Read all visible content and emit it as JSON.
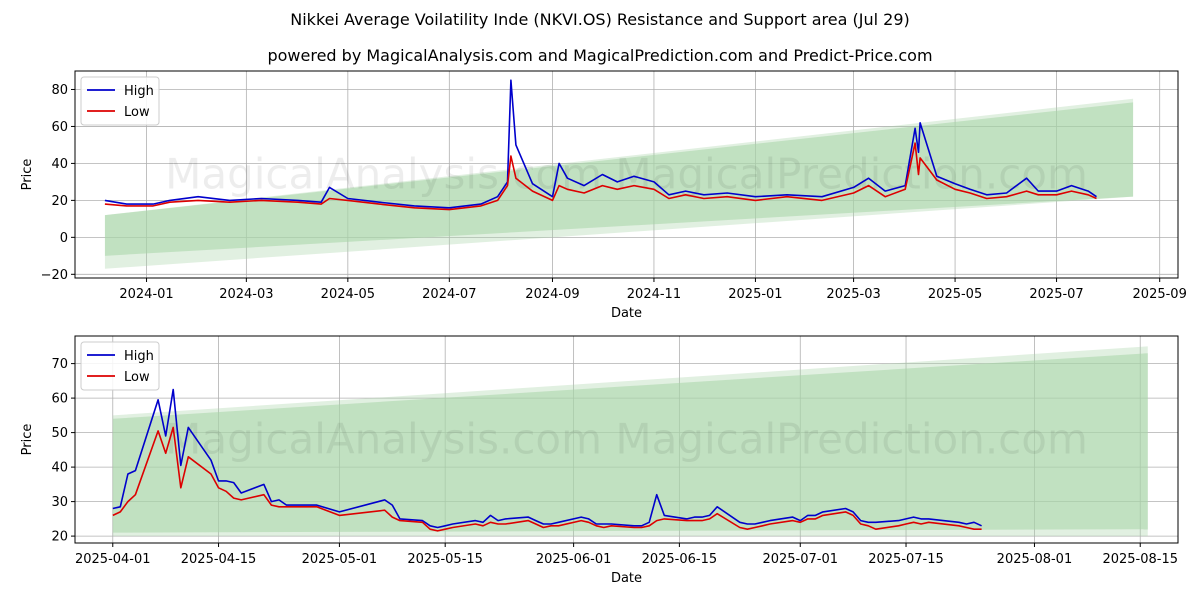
{
  "title": "Nikkei Average Voilatility Inde (NKVI.OS) Resistance and Support area (Jul 29)",
  "subtitle": "powered by MagicalAnalysis.com and MagicalPrediction.com and Predict-Price.com",
  "watermark": "MagicalAnalysis.com    MagicalPrediction.com",
  "colors": {
    "high": "#0000cc",
    "low": "#dd0000",
    "band": "#a8d5a8",
    "grid": "#b0b0b0"
  },
  "chart_data": [
    {
      "type": "line",
      "xlabel": "Date",
      "ylabel": "Price",
      "ylim": [
        -22,
        90
      ],
      "xlim": [
        "2023-11-19",
        "2025-09-12"
      ],
      "yticks": [
        -20,
        0,
        20,
        40,
        60,
        80
      ],
      "xticks": [
        "2024-01",
        "2024-03",
        "2024-05",
        "2024-07",
        "2024-09",
        "2024-11",
        "2025-01",
        "2025-03",
        "2025-05",
        "2025-07",
        "2025-09"
      ],
      "legend": "top-left",
      "grid": true,
      "band": {
        "x_start": "2023-12-07",
        "x_end": "2025-08-16",
        "outer": {
          "start": [
            -17,
            12
          ],
          "end": [
            22,
            75
          ]
        },
        "inner": {
          "start": [
            -10,
            12
          ],
          "end": [
            22,
            73
          ]
        }
      },
      "series": [
        {
          "name": "High",
          "color": "#0000cc",
          "x": [
            "2023-12-07",
            "2023-12-20",
            "2024-01-05",
            "2024-01-15",
            "2024-02-01",
            "2024-02-20",
            "2024-03-10",
            "2024-04-01",
            "2024-04-15",
            "2024-04-20",
            "2024-05-01",
            "2024-05-20",
            "2024-06-10",
            "2024-07-01",
            "2024-07-20",
            "2024-07-30",
            "2024-08-05",
            "2024-08-07",
            "2024-08-10",
            "2024-08-20",
            "2024-09-01",
            "2024-09-05",
            "2024-09-10",
            "2024-09-20",
            "2024-10-01",
            "2024-10-10",
            "2024-10-20",
            "2024-11-01",
            "2024-11-10",
            "2024-11-20",
            "2024-12-01",
            "2024-12-15",
            "2025-01-01",
            "2025-01-20",
            "2025-02-10",
            "2025-03-01",
            "2025-03-10",
            "2025-03-20",
            "2025-04-01",
            "2025-04-07",
            "2025-04-09",
            "2025-04-10",
            "2025-04-20",
            "2025-05-01",
            "2025-05-10",
            "2025-05-20",
            "2025-06-01",
            "2025-06-13",
            "2025-06-20",
            "2025-07-01",
            "2025-07-10",
            "2025-07-20",
            "2025-07-25"
          ],
          "values": [
            20,
            18,
            18,
            20,
            22,
            20,
            21,
            20,
            19,
            27,
            21,
            19,
            17,
            16,
            18,
            22,
            30,
            85,
            50,
            29,
            22,
            40,
            32,
            28,
            34,
            30,
            33,
            30,
            23,
            25,
            23,
            24,
            22,
            23,
            22,
            27,
            32,
            25,
            28,
            59,
            46,
            62,
            33,
            29,
            26,
            23,
            24,
            32,
            25,
            25,
            28,
            25,
            22
          ]
        },
        {
          "name": "Low",
          "color": "#dd0000",
          "x": [
            "2023-12-07",
            "2023-12-20",
            "2024-01-05",
            "2024-01-15",
            "2024-02-01",
            "2024-02-20",
            "2024-03-10",
            "2024-04-01",
            "2024-04-15",
            "2024-04-20",
            "2024-05-01",
            "2024-05-20",
            "2024-06-10",
            "2024-07-01",
            "2024-07-20",
            "2024-07-30",
            "2024-08-05",
            "2024-08-07",
            "2024-08-10",
            "2024-08-20",
            "2024-09-01",
            "2024-09-05",
            "2024-09-10",
            "2024-09-20",
            "2024-10-01",
            "2024-10-10",
            "2024-10-20",
            "2024-11-01",
            "2024-11-10",
            "2024-11-20",
            "2024-12-01",
            "2024-12-15",
            "2025-01-01",
            "2025-01-20",
            "2025-02-10",
            "2025-03-01",
            "2025-03-10",
            "2025-03-20",
            "2025-04-01",
            "2025-04-07",
            "2025-04-09",
            "2025-04-10",
            "2025-04-20",
            "2025-05-01",
            "2025-05-10",
            "2025-05-20",
            "2025-06-01",
            "2025-06-13",
            "2025-06-20",
            "2025-07-01",
            "2025-07-10",
            "2025-07-20",
            "2025-07-25"
          ],
          "values": [
            18,
            17,
            17,
            19,
            20,
            19,
            20,
            19,
            18,
            21,
            20,
            18,
            16,
            15,
            17,
            20,
            28,
            44,
            32,
            25,
            20,
            28,
            26,
            24,
            28,
            26,
            28,
            26,
            21,
            23,
            21,
            22,
            20,
            22,
            20,
            24,
            28,
            22,
            26,
            51,
            34,
            43,
            31,
            26,
            24,
            21,
            22,
            25,
            23,
            23,
            25,
            23,
            21
          ]
        }
      ]
    },
    {
      "type": "line",
      "xlabel": "Date",
      "ylabel": "Price",
      "ylim": [
        18,
        78
      ],
      "xlim": [
        "2025-03-27",
        "2025-08-20"
      ],
      "yticks": [
        20,
        30,
        40,
        50,
        60,
        70
      ],
      "xticks": [
        "2025-04-01",
        "2025-04-15",
        "2025-05-01",
        "2025-05-15",
        "2025-06-01",
        "2025-06-15",
        "2025-07-01",
        "2025-07-15",
        "2025-08-01",
        "2025-08-15"
      ],
      "legend": "top-left",
      "grid": true,
      "band": {
        "x_start": "2025-04-01",
        "x_end": "2025-08-16",
        "outer": {
          "start": [
            20,
            55
          ],
          "end": [
            20,
            75
          ]
        },
        "inner": {
          "start": [
            21,
            54
          ],
          "end": [
            22,
            73
          ]
        }
      },
      "series": [
        {
          "name": "High",
          "color": "#0000cc",
          "x": [
            "2025-04-01",
            "2025-04-02",
            "2025-04-03",
            "2025-04-04",
            "2025-04-07",
            "2025-04-08",
            "2025-04-09",
            "2025-04-10",
            "2025-04-11",
            "2025-04-14",
            "2025-04-15",
            "2025-04-16",
            "2025-04-17",
            "2025-04-18",
            "2025-04-21",
            "2025-04-22",
            "2025-04-23",
            "2025-04-24",
            "2025-04-25",
            "2025-04-28",
            "2025-05-01",
            "2025-05-07",
            "2025-05-08",
            "2025-05-09",
            "2025-05-12",
            "2025-05-13",
            "2025-05-14",
            "2025-05-15",
            "2025-05-16",
            "2025-05-19",
            "2025-05-20",
            "2025-05-21",
            "2025-05-22",
            "2025-05-23",
            "2025-05-26",
            "2025-05-27",
            "2025-05-28",
            "2025-05-29",
            "2025-05-30",
            "2025-06-02",
            "2025-06-03",
            "2025-06-04",
            "2025-06-05",
            "2025-06-06",
            "2025-06-09",
            "2025-06-10",
            "2025-06-11",
            "2025-06-12",
            "2025-06-13",
            "2025-06-16",
            "2025-06-17",
            "2025-06-18",
            "2025-06-19",
            "2025-06-20",
            "2025-06-23",
            "2025-06-24",
            "2025-06-25",
            "2025-06-26",
            "2025-06-27",
            "2025-06-30",
            "2025-07-01",
            "2025-07-02",
            "2025-07-03",
            "2025-07-04",
            "2025-07-07",
            "2025-07-08",
            "2025-07-09",
            "2025-07-10",
            "2025-07-11",
            "2025-07-14",
            "2025-07-15",
            "2025-07-16",
            "2025-07-17",
            "2025-07-18",
            "2025-07-22",
            "2025-07-23",
            "2025-07-24",
            "2025-07-25"
          ],
          "values": [
            28,
            28.5,
            38,
            39,
            59.5,
            49,
            62.5,
            40.5,
            51.5,
            42,
            36,
            36,
            35.5,
            32.5,
            35,
            30,
            30.5,
            29,
            29,
            29,
            27,
            30.5,
            29,
            25,
            24.5,
            23,
            22.5,
            23,
            23.5,
            24.5,
            24,
            26,
            24.5,
            25,
            25.5,
            24.5,
            23.5,
            23.5,
            24,
            25.5,
            25,
            23.5,
            23.5,
            23.5,
            23,
            23,
            24,
            32,
            26,
            25,
            25.5,
            25.5,
            26,
            28.5,
            24,
            23.5,
            23.5,
            24,
            24.5,
            25.5,
            24.5,
            26,
            26,
            27,
            28,
            27,
            24.5,
            24,
            24,
            24.5,
            25,
            25.5,
            25,
            25,
            24,
            23.5,
            24,
            23
          ]
        },
        {
          "name": "Low",
          "color": "#dd0000",
          "x": [
            "2025-04-01",
            "2025-04-02",
            "2025-04-03",
            "2025-04-04",
            "2025-04-07",
            "2025-04-08",
            "2025-04-09",
            "2025-04-10",
            "2025-04-11",
            "2025-04-14",
            "2025-04-15",
            "2025-04-16",
            "2025-04-17",
            "2025-04-18",
            "2025-04-21",
            "2025-04-22",
            "2025-04-23",
            "2025-04-24",
            "2025-04-25",
            "2025-04-28",
            "2025-05-01",
            "2025-05-07",
            "2025-05-08",
            "2025-05-09",
            "2025-05-12",
            "2025-05-13",
            "2025-05-14",
            "2025-05-15",
            "2025-05-16",
            "2025-05-19",
            "2025-05-20",
            "2025-05-21",
            "2025-05-22",
            "2025-05-23",
            "2025-05-26",
            "2025-05-27",
            "2025-05-28",
            "2025-05-29",
            "2025-05-30",
            "2025-06-02",
            "2025-06-03",
            "2025-06-04",
            "2025-06-05",
            "2025-06-06",
            "2025-06-09",
            "2025-06-10",
            "2025-06-11",
            "2025-06-12",
            "2025-06-13",
            "2025-06-16",
            "2025-06-17",
            "2025-06-18",
            "2025-06-19",
            "2025-06-20",
            "2025-06-23",
            "2025-06-24",
            "2025-06-25",
            "2025-06-26",
            "2025-06-27",
            "2025-06-30",
            "2025-07-01",
            "2025-07-02",
            "2025-07-03",
            "2025-07-04",
            "2025-07-07",
            "2025-07-08",
            "2025-07-09",
            "2025-07-10",
            "2025-07-11",
            "2025-07-14",
            "2025-07-15",
            "2025-07-16",
            "2025-07-17",
            "2025-07-18",
            "2025-07-22",
            "2025-07-23",
            "2025-07-24",
            "2025-07-25"
          ],
          "values": [
            26,
            27,
            30,
            32,
            50.5,
            44,
            51.5,
            34,
            43,
            38,
            34,
            33,
            31,
            30.5,
            32,
            29,
            28.5,
            28.5,
            28.5,
            28.5,
            26,
            27.5,
            25.5,
            24.5,
            24,
            22,
            21.5,
            22,
            22.5,
            23.5,
            23,
            24,
            23.5,
            23.5,
            24.5,
            23.5,
            22.5,
            23,
            23,
            24.5,
            24,
            23,
            22.5,
            23,
            22.5,
            22.5,
            23,
            24.5,
            25,
            24.5,
            24.5,
            24.5,
            25,
            26.5,
            22.5,
            22,
            22.5,
            23,
            23.5,
            24.5,
            24,
            25,
            25,
            26,
            27,
            26,
            23.5,
            23,
            22,
            23,
            23.5,
            24,
            23.5,
            24,
            23,
            22.5,
            22,
            22
          ]
        }
      ]
    }
  ]
}
